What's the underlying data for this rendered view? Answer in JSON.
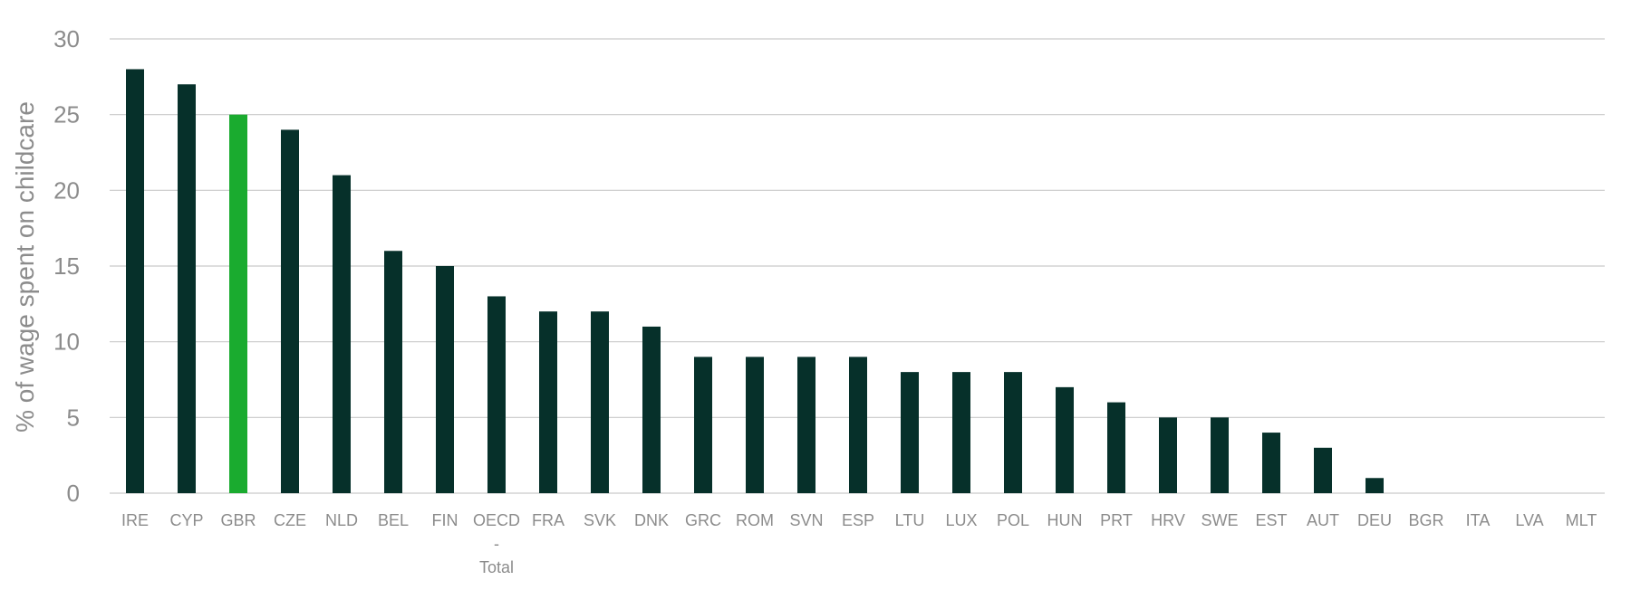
{
  "chart_data": {
    "type": "bar",
    "title": "",
    "xlabel": "",
    "ylabel": "% of wage spent on childcare",
    "ylim": [
      0,
      30
    ],
    "yticks": [
      "0",
      "5",
      "10",
      "15",
      "20",
      "25",
      "30"
    ],
    "grid": true,
    "legend": "none",
    "categories": [
      "IRE",
      "CYP",
      "GBR",
      "CZE",
      "NLD",
      "BEL",
      "FIN",
      "OECD - Total",
      "FRA",
      "SVK",
      "DNK",
      "GRC",
      "ROM",
      "SVN",
      "ESP",
      "LTU",
      "LUX",
      "POL",
      "HUN",
      "PRT",
      "HRV",
      "SWE",
      "EST",
      "AUT",
      "DEU",
      "BGR",
      "ITA",
      "LVA",
      "MLT"
    ],
    "category_lines": [
      [
        "IRE"
      ],
      [
        "CYP"
      ],
      [
        "GBR"
      ],
      [
        "CZE"
      ],
      [
        "NLD"
      ],
      [
        "BEL"
      ],
      [
        "FIN"
      ],
      [
        "OECD",
        "-",
        "Total"
      ],
      [
        "FRA"
      ],
      [
        "SVK"
      ],
      [
        "DNK"
      ],
      [
        "GRC"
      ],
      [
        "ROM"
      ],
      [
        "SVN"
      ],
      [
        "ESP"
      ],
      [
        "LTU"
      ],
      [
        "LUX"
      ],
      [
        "POL"
      ],
      [
        "HUN"
      ],
      [
        "PRT"
      ],
      [
        "HRV"
      ],
      [
        "SWE"
      ],
      [
        "EST"
      ],
      [
        "AUT"
      ],
      [
        "DEU"
      ],
      [
        "BGR"
      ],
      [
        "ITA"
      ],
      [
        "LVA"
      ],
      [
        "MLT"
      ]
    ],
    "values": [
      28,
      27,
      25,
      24,
      21,
      16,
      15,
      13,
      12,
      12,
      11,
      9,
      9,
      9,
      9,
      8,
      8,
      8,
      7,
      6,
      5,
      5,
      4,
      3,
      1,
      0,
      0,
      0,
      0
    ],
    "colors": {
      "default": "#06302a",
      "highlight": "#1aab2f"
    },
    "highlight_category": "GBR"
  }
}
